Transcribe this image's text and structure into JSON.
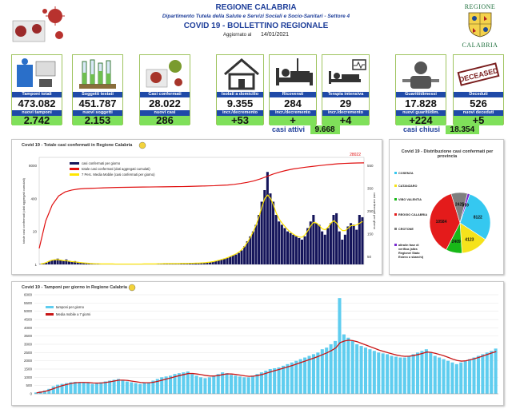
{
  "header": {
    "region": "REGIONE CALABRIA",
    "department": "Dipartimento Tutela della Salute e Servizi Sociali e Socio-Sanitari - Settore 4",
    "title": "COVID 19 - BOLLETTINO REGIONALE",
    "updated_label": "Aggiornato al",
    "updated_date": "14/01/2021",
    "logo_text_top": "REGIONE",
    "logo_text_bottom": "CALABRIA"
  },
  "tiles": [
    {
      "label": "Tamponi totali",
      "value": "473.082",
      "label2": "nuovi tamponi",
      "value2": "2.742",
      "icon": "lab-test-icon"
    },
    {
      "label": "Soggetti testati",
      "value": "451.787",
      "label2": "nuovi soggetti",
      "value2": "2.153",
      "icon": "test-tubes-icon"
    },
    {
      "label": "Casi confermati",
      "value": "28.022",
      "label2": "nuovi casi",
      "value2": "286",
      "icon": "virus-icon"
    },
    {
      "label": "Isolati a domicilio",
      "value": "9.355",
      "label2": "incr./decremento",
      "value2": "+53",
      "icon": "house-icon"
    },
    {
      "label": "Ricoverati",
      "value": "284",
      "label2": "incr./decremento",
      "value2": "+",
      "icon": "hospital-bed-icon"
    },
    {
      "label": "Terapia intensiva",
      "value": "29",
      "label2": "incr./decremento",
      "value2": "+4",
      "icon": "icu-icon"
    },
    {
      "label": "Guariti/dimessi",
      "value": "17.828",
      "label2": "nuovi guariti/dim.",
      "value2": "+224",
      "icon": "healed-icon"
    },
    {
      "label": "Deceduti",
      "value": "526",
      "label2": "nuovi deceduti",
      "value2": "+5",
      "icon": "deceased-stamp-icon",
      "stamp": "DECEASED"
    }
  ],
  "summary": {
    "active_label": "casi attivi",
    "active_value": "9.668",
    "closed_label": "casi chiusi",
    "closed_value": "18.354"
  },
  "colors": {
    "blue": "#1f4aa8",
    "green": "#7fe05a",
    "navy_bars": "#14145a",
    "red_line": "#e01010",
    "yellow_line": "#ffe600",
    "cyan_bars": "#5fcdef"
  },
  "chart_data": [
    {
      "type": "bar",
      "title": "Covid 19 - Totale casi confermati in Regione Calabria",
      "ylabel": "totale casi confermati (dati aggregati cumulati)",
      "y2label": "casi confermati per giorno",
      "last_total_label": "28022",
      "left_ticks": [
        "8000",
        "400",
        "20",
        "1"
      ],
      "right_ticks": [
        "550",
        "350",
        "250",
        "150",
        "50"
      ],
      "legend": [
        "casi confermati per giorno",
        "totale casi confermati (dati aggregati cumulati)",
        "7 Perc. Media Mobile (casi confermati per giorno)"
      ],
      "series": [
        {
          "name": "casi confermati per giorno",
          "kind": "bar",
          "values": [
            2,
            5,
            10,
            18,
            25,
            30,
            35,
            28,
            24,
            30,
            22,
            18,
            20,
            15,
            12,
            10,
            8,
            6,
            5,
            4,
            4,
            3,
            3,
            2,
            3,
            4,
            2,
            2,
            1,
            1,
            2,
            2,
            1,
            1,
            1,
            2,
            2,
            3,
            3,
            2,
            2,
            3,
            4,
            4,
            5,
            4,
            6,
            5,
            4,
            5,
            6,
            5,
            7,
            8,
            6,
            7,
            9,
            10,
            12,
            14,
            18,
            20,
            25,
            30,
            35,
            40,
            48,
            55,
            60,
            70,
            85,
            110,
            140,
            170,
            200,
            240,
            300,
            380,
            450,
            560,
            430,
            380,
            300,
            260,
            240,
            220,
            200,
            190,
            180,
            170,
            160,
            150,
            170,
            220,
            260,
            300,
            250,
            240,
            200,
            180,
            220,
            250,
            300,
            310,
            200,
            150,
            180,
            230,
            250,
            240,
            210,
            300,
            286
          ]
        },
        {
          "name": "totale casi confermati (dati aggregati cumulati)",
          "kind": "line",
          "values": [
            5,
            80,
            400,
            1000,
            1500,
            1800,
            2000,
            2100,
            2150,
            2200,
            2250,
            2300,
            2350,
            2380,
            2400,
            2420,
            2440,
            2460,
            2480,
            2500,
            2520,
            2540,
            2560,
            2600,
            2650,
            2700,
            2750,
            2800,
            2900,
            3000,
            3200,
            3500,
            3900,
            4500,
            5500,
            7000,
            9000,
            11000,
            13000,
            15000,
            16500,
            18000,
            19500,
            21000,
            22500,
            24000,
            25500,
            26500,
            27200,
            27600,
            28022
          ]
        },
        {
          "name": "7 Perc. Media Mobile (casi confermati per giorno)",
          "kind": "line",
          "values": [
            3,
            6,
            12,
            20,
            26,
            28,
            29,
            26,
            23,
            22,
            19,
            17,
            15,
            13,
            11,
            9,
            8,
            6,
            5,
            4,
            4,
            3,
            3,
            3,
            3,
            3,
            2,
            2,
            2,
            2,
            2,
            2,
            2,
            2,
            2,
            2,
            3,
            3,
            3,
            3,
            3,
            4,
            4,
            5,
            5,
            5,
            5,
            5,
            5,
            6,
            6,
            6,
            7,
            7,
            8,
            8,
            9,
            10,
            12,
            14,
            17,
            21,
            25,
            30,
            35,
            41,
            48,
            56,
            64,
            75,
            90,
            110,
            135,
            165,
            200,
            240,
            290,
            350,
            400,
            420,
            400,
            360,
            310,
            275,
            250,
            230,
            210,
            195,
            182,
            172,
            166,
            165,
            180,
            205,
            235,
            255,
            250,
            235,
            215,
            210,
            225,
            250,
            265,
            250,
            220,
            205,
            205,
            220,
            235,
            235,
            240,
            250,
            260
          ]
        }
      ]
    },
    {
      "type": "pie",
      "title": "Covid 19 - Distribuzione casi confermati per provincia",
      "categories": [
        "COSENZA",
        "CATANZARO",
        "VIBO VALENTIA",
        "REGGIO CALABRIA",
        "CROTONE",
        "altra/in fase di verifica (altra Regione/ Stato Estero o sbarchi)"
      ],
      "values": [
        8122,
        4123,
        2409,
        10584,
        2425,
        359
      ],
      "colors": [
        "#35c8f0",
        "#f5e21b",
        "#18b818",
        "#e41b1b",
        "#7f7f7f",
        "#7a2ad0"
      ]
    },
    {
      "type": "bar",
      "title": "Covid 19 - Tamponi per giorno in Regione Calabria",
      "y_ticks": [
        "6000",
        "5500",
        "5000",
        "4500",
        "4000",
        "3500",
        "3000",
        "2500",
        "2000",
        "1500",
        "1000",
        "500",
        "0"
      ],
      "ylim": [
        0,
        6000
      ],
      "legend": [
        "tamponi per giorno",
        "Media mobile a 7 giorni"
      ],
      "series": [
        {
          "name": "tamponi per giorno",
          "kind": "bar",
          "values": [
            80,
            150,
            200,
            300,
            450,
            550,
            600,
            650,
            700,
            720,
            700,
            680,
            650,
            600,
            620,
            700,
            750,
            800,
            850,
            900,
            800,
            750,
            700,
            650,
            600,
            650,
            700,
            800,
            900,
            1000,
            1050,
            1100,
            1200,
            1250,
            1300,
            1350,
            1200,
            1100,
            1000,
            950,
            1000,
            1100,
            1200,
            1300,
            1250,
            1150,
            1100,
            1050,
            1000,
            1000,
            1100,
            1200,
            1300,
            1400,
            1500,
            1550,
            1600,
            1700,
            1800,
            1900,
            2000,
            2100,
            2200,
            2300,
            2400,
            2500,
            2700,
            2800,
            3000,
            3200,
            5800,
            3600,
            3400,
            3200,
            3000,
            2900,
            2800,
            2700,
            2600,
            2500,
            2450,
            2400,
            2300,
            2250,
            2200,
            2200,
            2300,
            2400,
            2500,
            2600,
            2700,
            2500,
            2300,
            2200,
            2100,
            2000,
            1900,
            1800,
            1900,
            2000,
            2100,
            2200,
            2300,
            2400,
            2500,
            2600,
            2742
          ]
        },
        {
          "name": "Media mobile a 7 giorni",
          "kind": "line",
          "values": [
            60,
            100,
            150,
            230,
            320,
            420,
            500,
            570,
            630,
            670,
            690,
            690,
            680,
            660,
            650,
            660,
            690,
            730,
            780,
            830,
            830,
            810,
            770,
            730,
            690,
            670,
            670,
            700,
            760,
            830,
            900,
            970,
            1040,
            1110,
            1170,
            1230,
            1230,
            1200,
            1160,
            1110,
            1080,
            1080,
            1110,
            1170,
            1210,
            1200,
            1170,
            1130,
            1090,
            1060,
            1070,
            1110,
            1170,
            1250,
            1330,
            1410,
            1480,
            1560,
            1640,
            1720,
            1810,
            1900,
            1990,
            2080,
            2170,
            2270,
            2380,
            2490,
            2620,
            2780,
            3100,
            3200,
            3250,
            3220,
            3150,
            3050,
            2950,
            2850,
            2750,
            2650,
            2570,
            2490,
            2420,
            2350,
            2300,
            2270,
            2280,
            2320,
            2380,
            2450,
            2530,
            2510,
            2450,
            2380,
            2300,
            2200,
            2100,
            2020,
            1980,
            2000,
            2060,
            2130,
            2210,
            2300,
            2390,
            2480,
            2560
          ]
        }
      ]
    }
  ]
}
